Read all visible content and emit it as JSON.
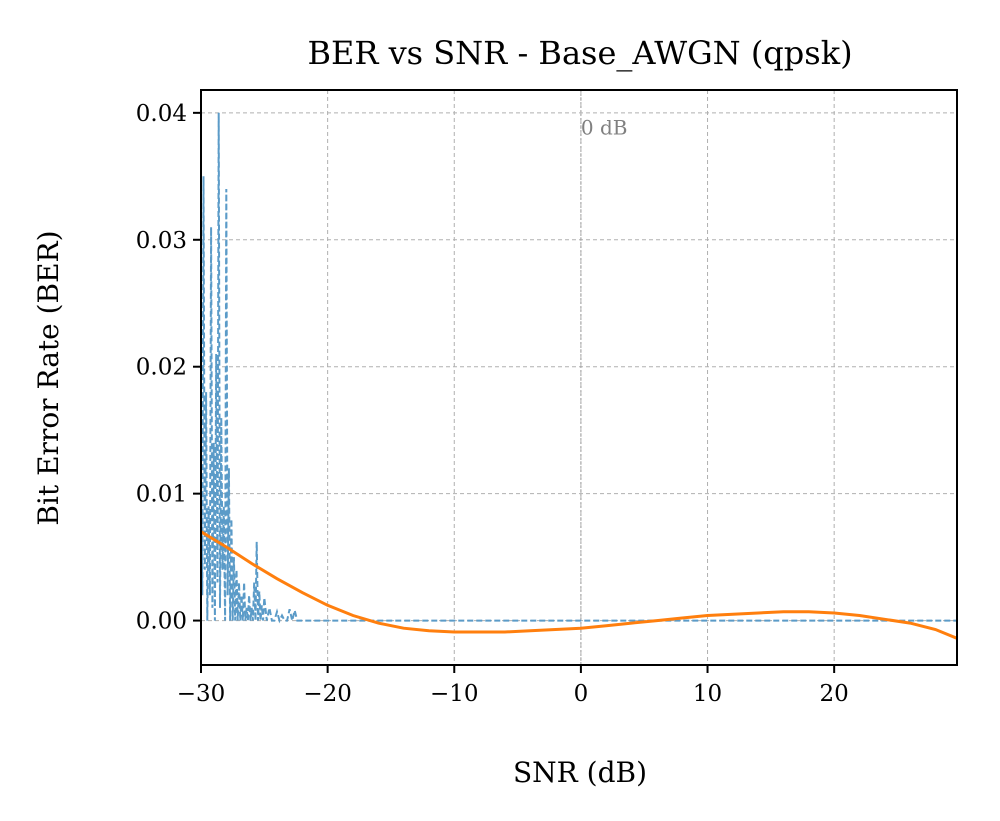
{
  "chart_data": {
    "type": "line",
    "title": "BER vs SNR - Base_AWGN (qpsk)",
    "xlabel": "SNR (dB)",
    "ylabel": "Bit Error Rate (BER)",
    "xlim": [
      -30,
      29.7
    ],
    "ylim": [
      -0.0035,
      0.0418
    ],
    "xticks": [
      -30,
      -20,
      -10,
      0,
      10,
      20
    ],
    "xtick_labels": [
      "−30",
      "−20",
      "−10",
      "0",
      "10",
      "20"
    ],
    "yticks": [
      0.0,
      0.01,
      0.02,
      0.03,
      0.04
    ],
    "ytick_labels": [
      "0.00",
      "0.01",
      "0.02",
      "0.03",
      "0.04"
    ],
    "grid": true,
    "annotations": [
      {
        "text": "0 dB",
        "x": 0.0,
        "y": 0.0383,
        "vline_x": 0
      }
    ],
    "series": [
      {
        "color": "#5b9bc8",
        "style": "dashed",
        "x": [
          -30,
          -29.9,
          -29.8,
          -29.7,
          -29.6,
          -29.5,
          -29.4,
          -29.3,
          -29.2,
          -29.1,
          -29.0,
          -28.9,
          -28.8,
          -28.7,
          -28.6,
          -28.5,
          -28.4,
          -28.3,
          -28.2,
          -28.1,
          -28.0,
          -27.9,
          -27.8,
          -27.7,
          -27.6,
          -27.5,
          -27.4,
          -27.3,
          -27.2,
          -27.1,
          -27.0,
          -26.9,
          -26.8,
          -26.7,
          -26.6,
          -26.5,
          -26.4,
          -26.3,
          -26.2,
          -26.1,
          -26.0,
          -25.9,
          -25.8,
          -25.7,
          -25.6,
          -25.5,
          -25.4,
          -25.3,
          -25.2,
          -25.1,
          -25.0,
          -24.8,
          -24.6,
          -24.4,
          -24.2,
          -24.0,
          -23.8,
          -23.6,
          -23.4,
          -23.2,
          -23.0,
          -22.8,
          -22.6,
          -22.4,
          -22.0,
          -20.0,
          0.0,
          20.0,
          29.7
        ],
        "values": [
          0.012,
          0.002,
          0.035,
          0.004,
          0.018,
          0.0,
          0.009,
          0.002,
          0.031,
          0.001,
          0.014,
          0.0,
          0.021,
          0.003,
          0.04,
          0.001,
          0.016,
          0.004,
          0.009,
          0.0,
          0.034,
          0.002,
          0.012,
          0.0,
          0.008,
          0.0,
          0.005,
          0.0,
          0.004,
          0.0,
          0.003,
          0.0,
          0.002,
          0.0,
          0.003,
          0.0,
          0.001,
          0.0,
          0.002,
          0.0,
          0.001,
          0.0,
          0.003,
          0.0,
          0.0062,
          0.0,
          0.0023,
          0.0,
          0.0012,
          0.0,
          0.0018,
          0.0,
          0.001,
          0.0,
          0.0,
          0.0007,
          0.0,
          0.0004,
          0.0,
          0.0,
          0.0009,
          0.0,
          0.0008,
          0.0,
          0.0,
          0.0,
          0.0,
          0.0,
          0.0
        ]
      },
      {
        "color": "#ff7f0e",
        "style": "solid",
        "x": [
          -30,
          -28,
          -26,
          -24,
          -22,
          -20,
          -18,
          -16,
          -14,
          -12,
          -10,
          -8,
          -6,
          -4,
          -2,
          0,
          2,
          4,
          6,
          8,
          10,
          12,
          14,
          16,
          18,
          20,
          22,
          24,
          26,
          28,
          29.7
        ],
        "values": [
          0.007,
          0.0058,
          0.0045,
          0.0033,
          0.0022,
          0.0012,
          0.0004,
          -0.0002,
          -0.0006,
          -0.0008,
          -0.0009,
          -0.0009,
          -0.0009,
          -0.0008,
          -0.0007,
          -0.0006,
          -0.0004,
          -0.0002,
          0.0,
          0.0002,
          0.0004,
          0.0005,
          0.0006,
          0.0007,
          0.0007,
          0.0006,
          0.0004,
          0.0001,
          -0.0002,
          -0.0007,
          -0.0014
        ]
      }
    ]
  }
}
